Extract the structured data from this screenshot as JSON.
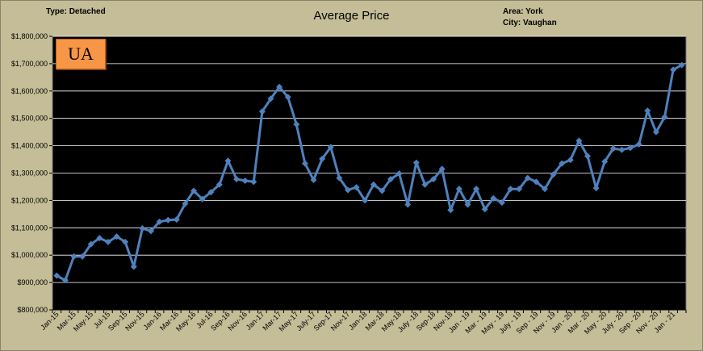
{
  "header": {
    "type_label": "Type: Detached",
    "area_label": "Area: York",
    "city_label": "City: Vaughan"
  },
  "badge": {
    "text": "UA",
    "color": "#f79646"
  },
  "colors": {
    "frame": "#c4bd97",
    "plot_bg": "#000000",
    "grid": "#ffffff",
    "series": "#4f81bd"
  },
  "chart_data": {
    "type": "line",
    "title": "Average Price",
    "xlabel": "",
    "ylabel": "",
    "ylim": [
      800000,
      1800000
    ],
    "y_ticks": [
      800000,
      900000,
      1000000,
      1100000,
      1200000,
      1300000,
      1400000,
      1500000,
      1600000,
      1700000,
      1800000
    ],
    "y_tick_labels": [
      "$800,000",
      "$900,000",
      "$1,000,000",
      "$1,100,000",
      "$1,200,000",
      "$1,300,000",
      "$1,400,000",
      "$1,500,000",
      "$1,600,000",
      "$1,700,000",
      "$1,800,000"
    ],
    "grid": true,
    "legend": "none",
    "marker": "diamond",
    "x_tick_labels": [
      "Jan-15",
      "Mar-15",
      "May-15",
      "Jul-15",
      "Sep-15",
      "Nov-15",
      "Jan-16",
      "Mar-16",
      "May-16",
      "Jul-16",
      "Sep-16",
      "Nov-16",
      "Jan-17",
      "Mar-17",
      "May-17",
      "July-17",
      "Sep-17",
      "Nov-17",
      "Jan-18",
      "Mar-18",
      "May-18",
      "July -18",
      "Sep-18",
      "Nov-18",
      "Jan - 19",
      "Mar - 19",
      "May - 19",
      "July - 19",
      "Sep - 19",
      "Nov - 19",
      "Jan - 20",
      "Mar - 20",
      "May - 20",
      "July - 20",
      "Sep - 20",
      "Nov - 20",
      "Jan - 21"
    ],
    "series": [
      {
        "values": [
          925000,
          908000,
          995000,
          995000,
          1040000,
          1062000,
          1048000,
          1068000,
          1048000,
          958000,
          1098000,
          1088000,
          1122000,
          1128000,
          1130000,
          1188000,
          1235000,
          1205000,
          1230000,
          1258000,
          1345000,
          1278000,
          1272000,
          1268000,
          1525000,
          1572000,
          1615000,
          1578000,
          1478000,
          1335000,
          1275000,
          1352000,
          1395000,
          1282000,
          1238000,
          1248000,
          1200000,
          1258000,
          1235000,
          1278000,
          1298000,
          1185000,
          1338000,
          1258000,
          1278000,
          1315000,
          1165000,
          1242000,
          1185000,
          1242000,
          1168000,
          1208000,
          1192000,
          1242000,
          1242000,
          1282000,
          1268000,
          1242000,
          1295000,
          1335000,
          1348000,
          1418000,
          1362000,
          1245000,
          1342000,
          1390000,
          1385000,
          1392000,
          1405000,
          1528000,
          1450000,
          1505000,
          1678000,
          1695000
        ]
      }
    ]
  }
}
